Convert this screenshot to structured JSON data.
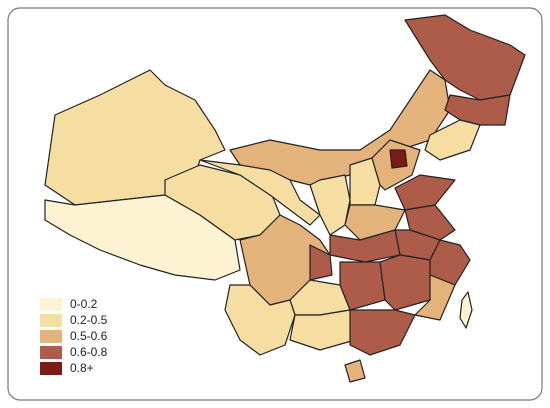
{
  "legend": {
    "items": [
      {
        "label": "0-0.2",
        "color": "#fdf3d2"
      },
      {
        "label": "0.2-0.5",
        "color": "#f6dea3"
      },
      {
        "label": "0.5-0.6",
        "color": "#e4b37c"
      },
      {
        "label": "0.6-0.8",
        "color": "#ac5c48"
      },
      {
        "label": "0.8+",
        "color": "#7a1c14"
      }
    ]
  }
}
